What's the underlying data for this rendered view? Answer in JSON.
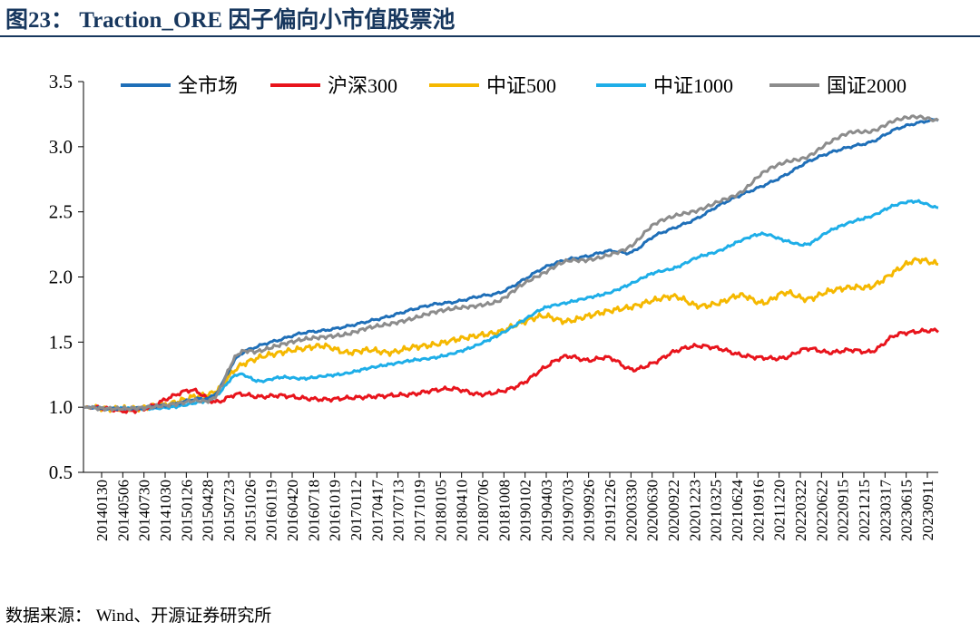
{
  "figure": {
    "title": "图23：  Traction_ORE 因子偏向小市值股票池",
    "source": "数据来源：  Wind、开源证券研究所"
  },
  "chart_data": {
    "type": "line",
    "title": "",
    "xlabel": "",
    "ylabel": "",
    "ylim": [
      0.5,
      3.5
    ],
    "yticks": [
      "0.5",
      "1.0",
      "1.5",
      "2.0",
      "2.5",
      "3.0",
      "3.5"
    ],
    "grid": false,
    "legend_position": "top",
    "x_tick_labels": [
      "20140130",
      "20140506",
      "20140730",
      "20141030",
      "20150126",
      "20150428",
      "20150723",
      "20151026",
      "20160119",
      "20160420",
      "20160718",
      "20161019",
      "20170112",
      "20170417",
      "20170713",
      "20171019",
      "20180105",
      "20180410",
      "20180706",
      "20181008",
      "20190102",
      "20190403",
      "20190703",
      "20190926",
      "20191226",
      "20200330",
      "20200630",
      "20200922",
      "20201223",
      "20210325",
      "20210624",
      "20210916",
      "20211220",
      "20220322",
      "20220622",
      "20220915",
      "20221215",
      "20230317",
      "20230615",
      "20230911"
    ],
    "series": [
      {
        "name": "全市场",
        "color": "#1f6fb8",
        "values": [
          1.0,
          0.99,
          0.99,
          1.0,
          1.02,
          1.06,
          1.1,
          1.38,
          1.47,
          1.52,
          1.57,
          1.59,
          1.62,
          1.66,
          1.7,
          1.75,
          1.79,
          1.81,
          1.85,
          1.88,
          1.97,
          2.07,
          2.13,
          2.16,
          2.2,
          2.19,
          2.31,
          2.38,
          2.45,
          2.55,
          2.63,
          2.7,
          2.78,
          2.88,
          2.95,
          3.0,
          3.04,
          3.13,
          3.18,
          3.21
        ]
      },
      {
        "name": "沪深300",
        "color": "#e8141c",
        "values": [
          1.0,
          0.99,
          0.97,
          1.0,
          1.08,
          1.13,
          1.04,
          1.1,
          1.08,
          1.09,
          1.07,
          1.06,
          1.07,
          1.08,
          1.09,
          1.1,
          1.13,
          1.14,
          1.1,
          1.12,
          1.18,
          1.3,
          1.39,
          1.36,
          1.38,
          1.29,
          1.34,
          1.43,
          1.47,
          1.45,
          1.4,
          1.38,
          1.38,
          1.45,
          1.42,
          1.44,
          1.43,
          1.55,
          1.58,
          1.59
        ]
      },
      {
        "name": "中证500",
        "color": "#f5b800",
        "values": [
          1.0,
          0.99,
          0.99,
          1.0,
          1.03,
          1.08,
          1.12,
          1.3,
          1.38,
          1.42,
          1.45,
          1.47,
          1.42,
          1.44,
          1.42,
          1.46,
          1.48,
          1.52,
          1.55,
          1.58,
          1.65,
          1.7,
          1.66,
          1.7,
          1.74,
          1.77,
          1.82,
          1.85,
          1.78,
          1.8,
          1.86,
          1.8,
          1.88,
          1.83,
          1.89,
          1.92,
          1.93,
          2.04,
          2.13,
          2.1
        ]
      },
      {
        "name": "中证1000",
        "color": "#1eaee8",
        "values": [
          1.0,
          0.99,
          0.99,
          0.99,
          1.0,
          1.03,
          1.08,
          1.25,
          1.2,
          1.23,
          1.22,
          1.24,
          1.26,
          1.3,
          1.33,
          1.36,
          1.38,
          1.42,
          1.48,
          1.56,
          1.66,
          1.76,
          1.8,
          1.84,
          1.88,
          1.95,
          2.03,
          2.07,
          2.15,
          2.2,
          2.28,
          2.33,
          2.28,
          2.25,
          2.35,
          2.42,
          2.47,
          2.55,
          2.58,
          2.53
        ]
      },
      {
        "name": "国证2000",
        "color": "#8c8c8c",
        "values": [
          1.0,
          0.99,
          0.99,
          1.0,
          1.02,
          1.05,
          1.08,
          1.4,
          1.43,
          1.48,
          1.52,
          1.54,
          1.56,
          1.61,
          1.64,
          1.68,
          1.73,
          1.76,
          1.78,
          1.82,
          1.94,
          2.03,
          2.12,
          2.13,
          2.17,
          2.24,
          2.4,
          2.47,
          2.51,
          2.58,
          2.65,
          2.8,
          2.88,
          2.92,
          3.03,
          3.11,
          3.12,
          3.2,
          3.23,
          3.2
        ]
      }
    ]
  }
}
